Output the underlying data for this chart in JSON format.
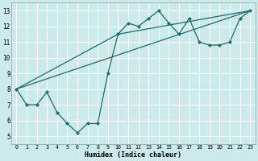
{
  "bg_color": "#cdeaea",
  "grid_color": "#b8d8d8",
  "line_color": "#1a6b6b",
  "text_color": "#000000",
  "xlabel": "Humidex (Indice chaleur)",
  "xlim": [
    -0.5,
    23.5
  ],
  "ylim": [
    4.5,
    13.5
  ],
  "xticks": [
    0,
    1,
    2,
    3,
    4,
    5,
    6,
    7,
    8,
    9,
    10,
    11,
    12,
    13,
    14,
    15,
    16,
    17,
    18,
    19,
    20,
    21,
    22,
    23
  ],
  "yticks": [
    5,
    6,
    7,
    8,
    9,
    10,
    11,
    12,
    13
  ],
  "main_x": [
    0,
    1,
    2,
    3,
    4,
    5,
    6,
    7,
    8,
    9,
    10,
    11,
    12,
    13,
    14,
    15,
    16,
    17,
    18,
    19,
    20,
    21,
    22,
    23
  ],
  "main_y": [
    8.0,
    7.0,
    7.0,
    7.8,
    6.5,
    5.8,
    5.2,
    5.8,
    5.8,
    9.0,
    11.5,
    12.2,
    12.0,
    12.5,
    13.0,
    12.2,
    11.5,
    12.5,
    11.0,
    10.8,
    10.8,
    11.0,
    12.5,
    13.0
  ],
  "lower_line_x": [
    0,
    23
  ],
  "lower_line_y": [
    8.0,
    13.0
  ],
  "upper_line_x": [
    0,
    10,
    23
  ],
  "upper_line_y": [
    8.0,
    11.5,
    13.0
  ]
}
